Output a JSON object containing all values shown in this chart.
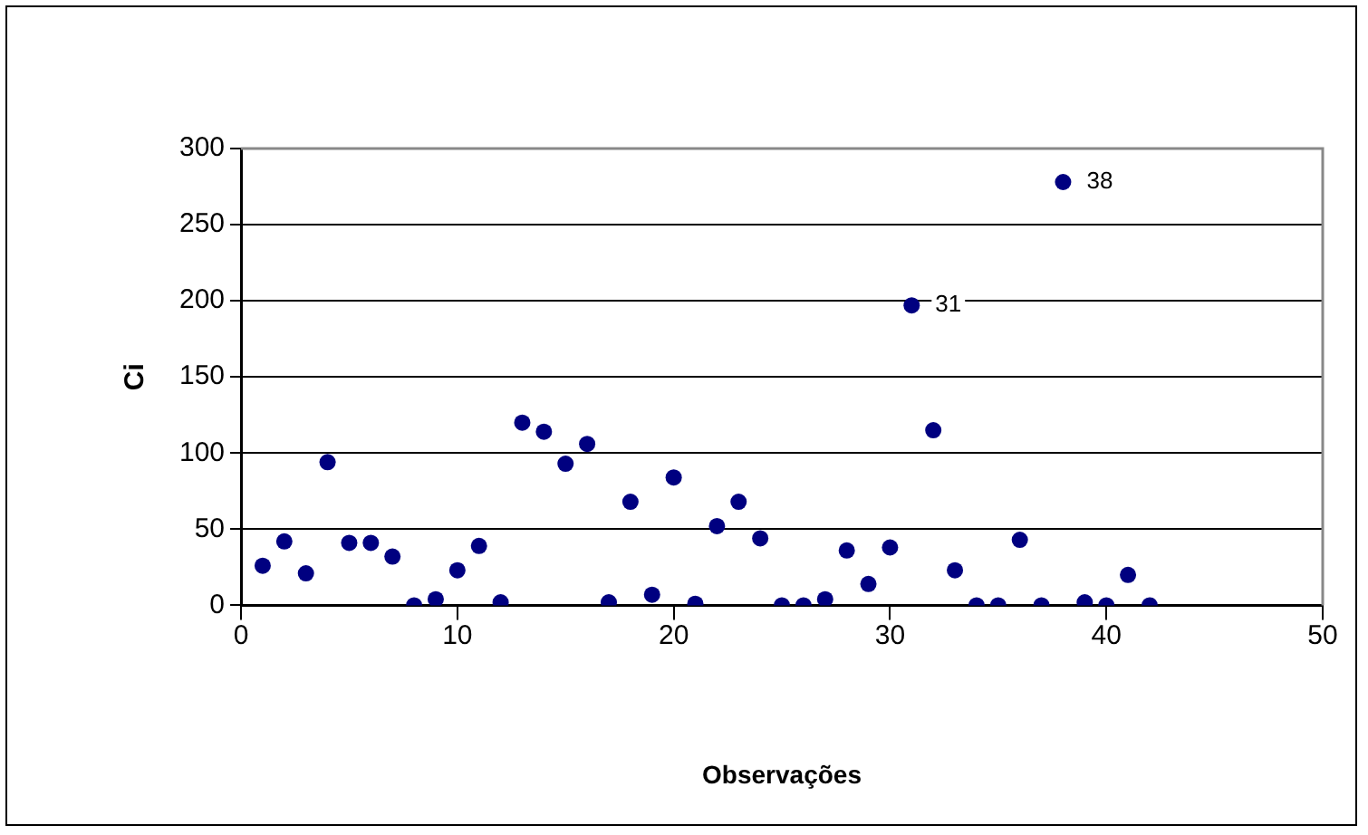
{
  "chart_data": {
    "type": "scatter",
    "xlabel": "Observações",
    "ylabel": "Ci",
    "x": [
      1,
      2,
      3,
      4,
      5,
      6,
      7,
      8,
      9,
      10,
      11,
      12,
      13,
      14,
      15,
      16,
      17,
      18,
      19,
      20,
      21,
      22,
      23,
      24,
      25,
      26,
      27,
      28,
      29,
      30,
      31,
      32,
      33,
      34,
      35,
      36,
      37,
      38,
      39,
      40,
      41,
      42
    ],
    "series": [
      {
        "color": "#000080",
        "values": [
          26,
          42,
          21,
          94,
          41,
          41,
          32,
          0,
          4,
          23,
          39,
          2,
          120,
          114,
          93,
          106,
          2,
          68,
          7,
          84,
          1,
          52,
          68,
          44,
          0,
          0,
          4,
          36,
          14,
          38,
          197,
          115,
          23,
          0,
          0,
          43,
          0,
          278,
          2,
          0,
          20,
          0
        ]
      }
    ],
    "xlim": [
      0,
      50
    ],
    "xticks": [
      0,
      10,
      20,
      30,
      40,
      50
    ],
    "ylim": [
      0,
      300
    ],
    "yticks": [
      0,
      50,
      100,
      150,
      200,
      250,
      300
    ],
    "grid": "y",
    "marker": "circle",
    "legend": false,
    "annotations": [
      {
        "text": "31",
        "x": 31,
        "y": 197
      },
      {
        "text": "38",
        "x": 38,
        "y": 278
      }
    ]
  }
}
